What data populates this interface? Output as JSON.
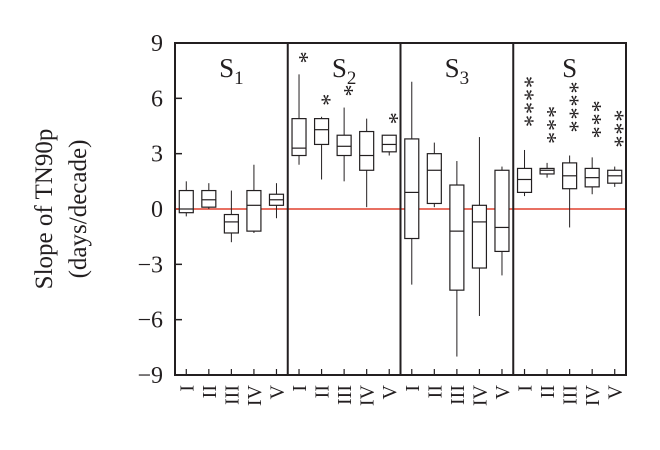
{
  "chart_data": {
    "type": "box",
    "ylabel": [
      "Slope of TN90p",
      "(days/decade)"
    ],
    "ylim": [
      -9,
      9
    ],
    "yticks": [
      {
        "value": -9,
        "label": "−9"
      },
      {
        "value": -6,
        "label": "−6"
      },
      {
        "value": -3,
        "label": "−3"
      },
      0,
      3,
      6,
      9
    ],
    "zero_line_color": "#e0412f",
    "panels": [
      {
        "title": "S",
        "title_sub": "1",
        "categories": [
          "I",
          "II",
          "III",
          "IV",
          "V"
        ],
        "min": [
          -0.4,
          0.0,
          -1.8,
          -1.3,
          -0.5
        ],
        "q1": [
          -0.2,
          0.1,
          -1.3,
          -1.2,
          0.2
        ],
        "median": [
          0.0,
          0.5,
          -0.7,
          0.2,
          0.5
        ],
        "q3": [
          1.0,
          1.0,
          -0.3,
          1.0,
          0.8
        ],
        "max": [
          1.5,
          1.4,
          1.0,
          2.4,
          1.4
        ],
        "markers": [
          null,
          null,
          null,
          null,
          null
        ]
      },
      {
        "title": "S",
        "title_sub": "2",
        "categories": [
          "I",
          "II",
          "III",
          "IV",
          "V"
        ],
        "min": [
          2.4,
          1.6,
          1.5,
          0.1,
          2.9
        ],
        "q1": [
          2.9,
          3.5,
          2.9,
          2.1,
          3.1
        ],
        "median": [
          3.3,
          4.3,
          3.4,
          2.9,
          3.5
        ],
        "q3": [
          4.9,
          4.9,
          4.0,
          4.2,
          4.0
        ],
        "max": [
          7.3,
          5.0,
          5.5,
          4.9,
          4.0
        ],
        "markers": [
          "*",
          "*",
          "*",
          null,
          "*"
        ]
      },
      {
        "title": "S",
        "title_sub": "3",
        "categories": [
          "I",
          "II",
          "III",
          "IV",
          "V"
        ],
        "min": [
          -4.1,
          0.1,
          -8.0,
          -5.8,
          -3.6
        ],
        "q1": [
          -1.6,
          0.3,
          -4.4,
          -3.2,
          -2.3
        ],
        "median": [
          0.9,
          2.1,
          -1.2,
          -0.7,
          -1.0
        ],
        "q3": [
          3.8,
          3.0,
          1.3,
          0.2,
          2.1
        ],
        "max": [
          6.9,
          3.6,
          2.6,
          3.9,
          2.3
        ],
        "markers": [
          null,
          null,
          null,
          null,
          null
        ]
      },
      {
        "title": "S",
        "categories": [
          "I",
          "II",
          "III",
          "IV",
          "V"
        ],
        "min": [
          0.7,
          1.7,
          -1.0,
          0.8,
          1.2
        ],
        "q1": [
          0.9,
          1.9,
          1.1,
          1.2,
          1.4
        ],
        "median": [
          1.6,
          2.1,
          1.8,
          1.7,
          1.8
        ],
        "q3": [
          2.2,
          2.2,
          2.5,
          2.2,
          2.1
        ],
        "max": [
          3.2,
          2.5,
          2.9,
          2.8,
          2.3
        ],
        "markers": [
          "****",
          "***",
          "****",
          "***",
          "***"
        ]
      }
    ]
  }
}
